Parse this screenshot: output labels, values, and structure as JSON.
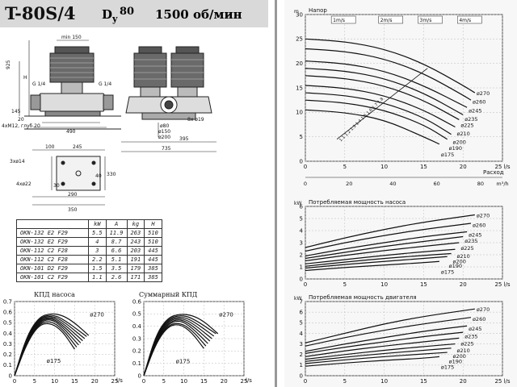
{
  "header": {
    "model": "T-80S/4",
    "dy_letter": "D",
    "dy_sub": "y",
    "dy_value": "80",
    "speed": "1500 об/мин"
  },
  "drawing": {
    "top_view": [
      "min 150",
      "H",
      "G 1/4",
      "G 1/4",
      "145",
      "20",
      "4xM12, глуб.20",
      "490",
      "925"
    ],
    "front_view": [
      "8x ø19",
      "ø80",
      "ø150",
      "ø200",
      "395",
      "735"
    ],
    "base_plan": [
      "100",
      "245",
      "3xø14",
      "330",
      "4xø22",
      "290",
      "350",
      "30",
      "40"
    ]
  },
  "motor_table": {
    "headers": [
      "",
      "kW",
      "A",
      "kg",
      "H"
    ],
    "rows": [
      [
        "OKN-132 E2 F29",
        "5.5",
        "11.9",
        "263",
        "510"
      ],
      [
        "OKN-132 E2 F29",
        "4",
        "8.7",
        "243",
        "510"
      ],
      [
        "OKN-112 C2 F28",
        "3",
        "6.6",
        "203",
        "445"
      ],
      [
        "OKN-112 C2 F28",
        "2.2",
        "5.1",
        "191",
        "445"
      ],
      [
        "OKN-101 D2 F29",
        "1.5",
        "3.5",
        "179",
        "385"
      ],
      [
        "OKN-101 C2 F29",
        "1.1",
        "2.6",
        "171",
        "385"
      ]
    ]
  },
  "chart_data": [
    {
      "type": "line",
      "title": "КПД насоса",
      "xlabel": "l/s",
      "ylabel": "",
      "xlim": [
        0,
        25
      ],
      "ylim": [
        0,
        0.7
      ],
      "xticks": [
        "0",
        "5",
        "10",
        "15",
        "20",
        "25"
      ],
      "yticks": [
        "0",
        "0.1",
        "0.2",
        "0.3",
        "0.4",
        "0.5",
        "0.6",
        "0.7"
      ],
      "annotations": [
        "ø270",
        "ø175"
      ],
      "series": [
        {
          "name": "ø175",
          "x": [
            0,
            3,
            6,
            9,
            12,
            15
          ],
          "y": [
            0,
            0.3,
            0.48,
            0.5,
            0.42,
            0.25
          ]
        },
        {
          "name": "",
          "x": [
            0,
            3,
            6,
            9,
            12,
            15.5
          ],
          "y": [
            0,
            0.31,
            0.49,
            0.52,
            0.44,
            0.27
          ]
        },
        {
          "name": "",
          "x": [
            0,
            3,
            6,
            9,
            12,
            16
          ],
          "y": [
            0,
            0.32,
            0.5,
            0.54,
            0.46,
            0.29
          ]
        },
        {
          "name": "",
          "x": [
            0,
            3,
            6,
            9,
            12,
            16.5
          ],
          "y": [
            0,
            0.33,
            0.51,
            0.55,
            0.48,
            0.31
          ]
        },
        {
          "name": "",
          "x": [
            0,
            3,
            6,
            9,
            12,
            17
          ],
          "y": [
            0,
            0.34,
            0.52,
            0.56,
            0.5,
            0.33
          ]
        },
        {
          "name": "",
          "x": [
            0,
            3,
            6,
            9,
            12,
            17.5
          ],
          "y": [
            0,
            0.35,
            0.53,
            0.57,
            0.52,
            0.35
          ]
        },
        {
          "name": "",
          "x": [
            0,
            3,
            6,
            9,
            12,
            18
          ],
          "y": [
            0,
            0.36,
            0.54,
            0.58,
            0.54,
            0.37
          ]
        },
        {
          "name": "ø270",
          "x": [
            0,
            3,
            6,
            9,
            12,
            15,
            18.5
          ],
          "y": [
            0,
            0.37,
            0.55,
            0.59,
            0.57,
            0.5,
            0.38
          ]
        }
      ]
    },
    {
      "type": "line",
      "title": "Суммарный КПД",
      "xlabel": "l/s",
      "ylabel": "",
      "xlim": [
        0,
        25
      ],
      "ylim": [
        0,
        0.6
      ],
      "xticks": [
        "0",
        "5",
        "10",
        "15",
        "20",
        "25"
      ],
      "yticks": [
        "0",
        "0.1",
        "0.2",
        "0.3",
        "0.4",
        "0.5",
        "0.6"
      ],
      "annotations": [
        "ø270",
        "ø175"
      ],
      "series": [
        {
          "name": "ø175",
          "x": [
            0,
            3,
            6,
            9,
            12,
            15
          ],
          "y": [
            0,
            0.26,
            0.4,
            0.42,
            0.35,
            0.22
          ]
        },
        {
          "name": "",
          "x": [
            0,
            3,
            6,
            9,
            12,
            15.5
          ],
          "y": [
            0,
            0.27,
            0.41,
            0.43,
            0.37,
            0.24
          ]
        },
        {
          "name": "",
          "x": [
            0,
            3,
            6,
            9,
            12,
            16
          ],
          "y": [
            0,
            0.28,
            0.42,
            0.45,
            0.39,
            0.26
          ]
        },
        {
          "name": "",
          "x": [
            0,
            3,
            6,
            9,
            12,
            16.5
          ],
          "y": [
            0,
            0.29,
            0.43,
            0.46,
            0.41,
            0.28
          ]
        },
        {
          "name": "",
          "x": [
            0,
            3,
            6,
            9,
            12,
            17
          ],
          "y": [
            0,
            0.3,
            0.44,
            0.47,
            0.43,
            0.3
          ]
        },
        {
          "name": "",
          "x": [
            0,
            3,
            6,
            9,
            12,
            17.5
          ],
          "y": [
            0,
            0.31,
            0.45,
            0.48,
            0.45,
            0.32
          ]
        },
        {
          "name": "",
          "x": [
            0,
            3,
            6,
            9,
            12,
            18
          ],
          "y": [
            0,
            0.32,
            0.46,
            0.49,
            0.47,
            0.34
          ]
        },
        {
          "name": "ø270",
          "x": [
            0,
            3,
            6,
            9,
            12,
            15,
            18.5
          ],
          "y": [
            0,
            0.33,
            0.47,
            0.5,
            0.49,
            0.44,
            0.34
          ]
        }
      ]
    },
    {
      "type": "line",
      "title": "Напор",
      "xlabel": "Расход",
      "ylabel": "m",
      "xlim": [
        0,
        25
      ],
      "ylim": [
        0,
        30
      ],
      "xticks": [
        "0",
        "5",
        "10",
        "15",
        "20",
        "25 l/s"
      ],
      "yticks": [
        "0",
        "5",
        "10",
        "15",
        "20",
        "25",
        "30"
      ],
      "secondary_xticks": [
        "0",
        "20",
        "40",
        "60",
        "80",
        "m³/h"
      ],
      "velocity_labels": [
        "1m/s",
        "2m/s",
        "3m/s",
        "4m/s"
      ],
      "npsh_label": "1.1 1.2 1.3 1.4 1.5 1.6 1.7 1.8",
      "series": [
        {
          "name": "ø270",
          "x": [
            0,
            5,
            10,
            15,
            20,
            21.5
          ],
          "y": [
            25,
            24.5,
            23,
            20,
            15.5,
            14
          ]
        },
        {
          "name": "ø260",
          "x": [
            0,
            5,
            10,
            15,
            20,
            21
          ],
          "y": [
            23,
            22.5,
            21,
            18,
            13.5,
            12.5
          ]
        },
        {
          "name": "ø245",
          "x": [
            0,
            5,
            10,
            15,
            20.5
          ],
          "y": [
            20.5,
            20,
            18.5,
            15.5,
            11
          ]
        },
        {
          "name": "ø235",
          "x": [
            0,
            5,
            10,
            15,
            20
          ],
          "y": [
            19,
            18.5,
            17,
            14,
            9.5
          ]
        },
        {
          "name": "ø225",
          "x": [
            0,
            5,
            10,
            15,
            19.5
          ],
          "y": [
            17.5,
            17,
            15.5,
            12.5,
            8.5
          ]
        },
        {
          "name": "ø210",
          "x": [
            0,
            5,
            10,
            15,
            19
          ],
          "y": [
            15.5,
            15,
            13.5,
            10.5,
            7
          ]
        },
        {
          "name": "ø200",
          "x": [
            0,
            5,
            10,
            15,
            18.5
          ],
          "y": [
            14,
            13.5,
            12,
            9,
            5.5
          ]
        },
        {
          "name": "ø190",
          "x": [
            0,
            5,
            10,
            15,
            18
          ],
          "y": [
            12.5,
            12,
            10.5,
            7.5,
            4.5
          ]
        },
        {
          "name": "ø175",
          "x": [
            0,
            5,
            10,
            15,
            17
          ],
          "y": [
            10.5,
            10,
            8.5,
            5,
            3.5
          ]
        }
      ]
    },
    {
      "type": "line",
      "title": "Потребляемая мощность насоса",
      "xlabel": "l/s",
      "ylabel": "kW",
      "xlim": [
        0,
        25
      ],
      "ylim": [
        0,
        6
      ],
      "xticks": [
        "0",
        "5",
        "10",
        "15",
        "20",
        "25 l/s"
      ],
      "yticks": [
        "0",
        "1",
        "2",
        "3",
        "4",
        "5",
        "6"
      ],
      "series": [
        {
          "name": "ø270",
          "x": [
            0,
            5,
            10,
            15,
            21.5
          ],
          "y": [
            2.6,
            3.4,
            4.1,
            4.7,
            5.3
          ]
        },
        {
          "name": "ø260",
          "x": [
            0,
            5,
            10,
            15,
            21
          ],
          "y": [
            2.3,
            3.0,
            3.6,
            4.1,
            4.6
          ]
        },
        {
          "name": "ø245",
          "x": [
            0,
            5,
            10,
            15,
            20.5
          ],
          "y": [
            1.9,
            2.5,
            3.0,
            3.5,
            3.9
          ]
        },
        {
          "name": "ø235",
          "x": [
            0,
            5,
            10,
            15,
            20
          ],
          "y": [
            1.7,
            2.2,
            2.7,
            3.1,
            3.5
          ]
        },
        {
          "name": "ø225",
          "x": [
            0,
            5,
            10,
            15,
            19.5
          ],
          "y": [
            1.5,
            1.95,
            2.35,
            2.7,
            3.0
          ]
        },
        {
          "name": "ø210",
          "x": [
            0,
            5,
            10,
            15,
            19
          ],
          "y": [
            1.25,
            1.6,
            1.95,
            2.25,
            2.45
          ]
        },
        {
          "name": "ø200",
          "x": [
            0,
            5,
            10,
            15,
            18.5
          ],
          "y": [
            1.05,
            1.4,
            1.7,
            1.95,
            2.1
          ]
        },
        {
          "name": "ø190",
          "x": [
            0,
            5,
            10,
            15,
            18
          ],
          "y": [
            0.9,
            1.2,
            1.45,
            1.7,
            1.85
          ]
        },
        {
          "name": "ø175",
          "x": [
            0,
            5,
            10,
            15,
            17
          ],
          "y": [
            0.7,
            0.95,
            1.15,
            1.35,
            1.45
          ]
        }
      ]
    },
    {
      "type": "line",
      "title": "Потребляемая мощность двигателя",
      "xlabel": "l/s",
      "ylabel": "kW",
      "xlim": [
        0,
        25
      ],
      "ylim": [
        0,
        7
      ],
      "xticks": [
        "0",
        "5",
        "10",
        "15",
        "20",
        "25 l/s"
      ],
      "yticks": [
        "0",
        "1",
        "2",
        "3",
        "4",
        "5",
        "6",
        "7"
      ],
      "series": [
        {
          "name": "ø270",
          "x": [
            0,
            5,
            10,
            15,
            21.5
          ],
          "y": [
            3.1,
            4.0,
            4.9,
            5.6,
            6.3
          ]
        },
        {
          "name": "ø260",
          "x": [
            0,
            5,
            10,
            15,
            21
          ],
          "y": [
            2.8,
            3.6,
            4.3,
            4.9,
            5.5
          ]
        },
        {
          "name": "ø245",
          "x": [
            0,
            5,
            10,
            15,
            20.5
          ],
          "y": [
            2.3,
            3.0,
            3.6,
            4.2,
            4.7
          ]
        },
        {
          "name": "ø235",
          "x": [
            0,
            5,
            10,
            15,
            20
          ],
          "y": [
            2.1,
            2.7,
            3.2,
            3.7,
            4.1
          ]
        },
        {
          "name": "ø225",
          "x": [
            0,
            5,
            10,
            15,
            19.5
          ],
          "y": [
            1.8,
            2.35,
            2.8,
            3.2,
            3.55
          ]
        },
        {
          "name": "ø210",
          "x": [
            0,
            5,
            10,
            15,
            19
          ],
          "y": [
            1.55,
            2.0,
            2.4,
            2.75,
            3.0
          ]
        },
        {
          "name": "ø200",
          "x": [
            0,
            5,
            10,
            15,
            18.5
          ],
          "y": [
            1.35,
            1.75,
            2.1,
            2.4,
            2.6
          ]
        },
        {
          "name": "ø190",
          "x": [
            0,
            5,
            10,
            15,
            18
          ],
          "y": [
            1.15,
            1.5,
            1.8,
            2.05,
            2.2
          ]
        },
        {
          "name": "ø175",
          "x": [
            0,
            5,
            10,
            15,
            17
          ],
          "y": [
            0.9,
            1.2,
            1.45,
            1.65,
            1.8
          ]
        }
      ]
    }
  ]
}
